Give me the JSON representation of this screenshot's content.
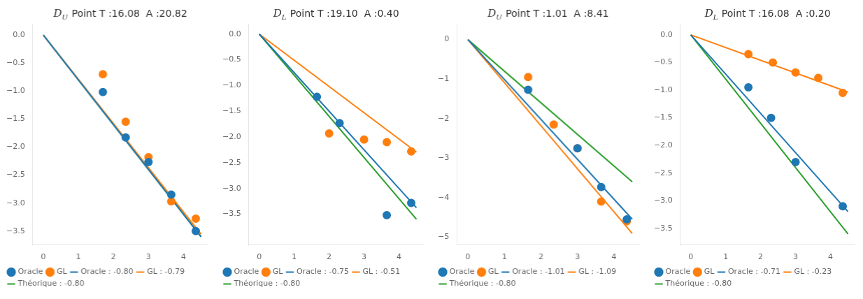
{
  "chart_data": [
    {
      "type": "scatter",
      "title": "DU Point T :16.08  A :20.82",
      "series": [
        {
          "name": "Oracle : -0.80",
          "type": "line",
          "color": "#1f77b4",
          "x": [
            0.0,
            4.5
          ],
          "values": [
            0.0,
            -3.6
          ]
        },
        {
          "name": "GL : -0.79",
          "type": "line",
          "color": "#ff7f0e",
          "x": [
            0.0,
            4.5
          ],
          "values": [
            0.0,
            -3.555
          ]
        },
        {
          "name": "Théorique : -0.80",
          "type": "line",
          "color": "#2ca02c",
          "x": [
            0.0,
            4.5
          ],
          "values": [
            0.0,
            -3.6
          ]
        },
        {
          "name": "Oracle",
          "type": "scatter",
          "color": "#1f77b4",
          "x": [
            1.7,
            2.35,
            3.0,
            3.65,
            4.35
          ],
          "values": [
            -1.02,
            -1.83,
            -2.27,
            -2.85,
            -3.5
          ]
        },
        {
          "name": "GL",
          "type": "scatter",
          "color": "#ff7f0e",
          "x": [
            1.7,
            2.35,
            3.0,
            3.65,
            4.35
          ],
          "values": [
            -0.7,
            -1.55,
            -2.18,
            -2.97,
            -3.28
          ]
        }
      ],
      "xlim": [
        -0.3,
        4.7
      ],
      "xticks": [
        0,
        1,
        2,
        3,
        4
      ],
      "ylim": [
        -3.75,
        0.2
      ],
      "yticks": [
        {
          "value": 0.0,
          "label": "0.0"
        },
        {
          "value": -0.5,
          "label": "−0.5"
        },
        {
          "value": -1.0,
          "label": "−1.0"
        },
        {
          "value": -1.5,
          "label": "−1.5"
        },
        {
          "value": -2.0,
          "label": "−2.0"
        },
        {
          "value": -2.5,
          "label": "−2.5"
        },
        {
          "value": -3.0,
          "label": "−3.0"
        },
        {
          "value": -3.5,
          "label": "−3.5"
        }
      ],
      "grid": false,
      "legend": "lower left"
    },
    {
      "type": "scatter",
      "title": "DL Point T :19.10  A :0.40",
      "series": [
        {
          "name": "Oracle : -0.75",
          "type": "line",
          "color": "#1f77b4",
          "x": [
            0.0,
            4.5
          ],
          "values": [
            0.0,
            -3.375
          ]
        },
        {
          "name": "GL : -0.51",
          "type": "line",
          "color": "#ff7f0e",
          "x": [
            0.0,
            4.5
          ],
          "values": [
            0.0,
            -2.295
          ]
        },
        {
          "name": "Théorique : -0.80",
          "type": "line",
          "color": "#2ca02c",
          "x": [
            0.0,
            4.5
          ],
          "values": [
            0.0,
            -3.6
          ]
        },
        {
          "name": "Oracle",
          "type": "scatter",
          "color": "#1f77b4",
          "x": [
            1.65,
            2.3,
            3.65,
            4.35
          ],
          "values": [
            -1.22,
            -1.73,
            -3.52,
            -3.28
          ]
        },
        {
          "name": "GL",
          "type": "scatter",
          "color": "#ff7f0e",
          "x": [
            2.0,
            3.0,
            3.65,
            4.35
          ],
          "values": [
            -1.93,
            -2.05,
            -2.1,
            -2.28
          ]
        }
      ],
      "xlim": [
        -0.3,
        4.7
      ],
      "xticks": [
        0,
        1,
        2,
        3,
        4
      ],
      "ylim": [
        -4.1,
        0.2
      ],
      "yticks": [
        {
          "value": 0.0,
          "label": "0.0"
        },
        {
          "value": -0.5,
          "label": "−0.5"
        },
        {
          "value": -1.0,
          "label": "−1.0"
        },
        {
          "value": -1.5,
          "label": "−1.5"
        },
        {
          "value": -2.0,
          "label": "−2.0"
        },
        {
          "value": -2.5,
          "label": "−2.5"
        },
        {
          "value": -3.0,
          "label": "−3.0"
        },
        {
          "value": -3.5,
          "label": "−3.5"
        }
      ],
      "grid": false,
      "legend": "lower left"
    },
    {
      "type": "scatter",
      "title": "DU Point T :1.01  A :8.41",
      "series": [
        {
          "name": "Oracle : -1.01",
          "type": "line",
          "color": "#1f77b4",
          "x": [
            0.0,
            4.5
          ],
          "values": [
            0.0,
            -4.545
          ]
        },
        {
          "name": "GL : -1.09",
          "type": "line",
          "color": "#ff7f0e",
          "x": [
            0.0,
            4.5
          ],
          "values": [
            0.0,
            -4.905
          ]
        },
        {
          "name": "Théorique : -0.80",
          "type": "line",
          "color": "#2ca02c",
          "x": [
            0.0,
            4.5
          ],
          "values": [
            0.0,
            -3.6
          ]
        },
        {
          "name": "Oracle",
          "type": "scatter",
          "color": "#1f77b4",
          "x": [
            1.65,
            3.0,
            3.65,
            4.35
          ],
          "values": [
            -1.27,
            -2.75,
            -3.73,
            -4.55
          ]
        },
        {
          "name": "GL",
          "type": "scatter",
          "color": "#ff7f0e",
          "x": [
            1.65,
            2.35,
            3.0,
            3.65,
            4.35
          ],
          "values": [
            -0.95,
            -2.15,
            -2.75,
            -4.1,
            -4.6
          ]
        }
      ],
      "xlim": [
        -0.3,
        4.7
      ],
      "xticks": [
        0,
        1,
        2,
        3,
        4
      ],
      "ylim": [
        -5.2,
        0.4
      ],
      "yticks": [
        0,
        {
          "value": -1,
          "label": "−1"
        },
        {
          "value": -2,
          "label": "−2"
        },
        {
          "value": -3,
          "label": "−3"
        },
        {
          "value": -4,
          "label": "−4"
        },
        {
          "value": -5,
          "label": "−5"
        }
      ],
      "grid": false,
      "legend": "lower left"
    },
    {
      "type": "scatter",
      "title": "DL Point T :16.08  A :0.20",
      "series": [
        {
          "name": "Oracle : -0.71",
          "type": "line",
          "color": "#1f77b4",
          "x": [
            0.0,
            4.5
          ],
          "values": [
            0.0,
            -3.195
          ]
        },
        {
          "name": "GL : -0.23",
          "type": "line",
          "color": "#ff7f0e",
          "x": [
            0.0,
            4.5
          ],
          "values": [
            0.0,
            -1.035
          ]
        },
        {
          "name": "Théorique : -0.80",
          "type": "line",
          "color": "#2ca02c",
          "x": [
            0.0,
            4.5
          ],
          "values": [
            0.0,
            -3.6
          ]
        },
        {
          "name": "Oracle",
          "type": "scatter",
          "color": "#1f77b4",
          "x": [
            1.65,
            2.3,
            3.0,
            4.35
          ],
          "values": [
            -0.95,
            -1.5,
            -2.3,
            -3.1
          ]
        },
        {
          "name": "GL",
          "type": "scatter",
          "color": "#ff7f0e",
          "x": [
            1.65,
            2.35,
            3.0,
            3.65,
            4.35
          ],
          "values": [
            -0.35,
            -0.5,
            -0.68,
            -0.78,
            -1.05
          ]
        }
      ],
      "xlim": [
        -0.3,
        4.7
      ],
      "xticks": [
        0,
        1,
        2,
        3,
        4
      ],
      "ylim": [
        -3.8,
        0.2
      ],
      "yticks": [
        {
          "value": 0.0,
          "label": "0.0"
        },
        {
          "value": -0.5,
          "label": "−0.5"
        },
        {
          "value": -1.0,
          "label": "−1.0"
        },
        {
          "value": -1.5,
          "label": "−1.5"
        },
        {
          "value": -2.0,
          "label": "−2.0"
        },
        {
          "value": -2.5,
          "label": "−2.5"
        },
        {
          "value": -3.0,
          "label": "−3.0"
        },
        {
          "value": -3.5,
          "label": "−3.5"
        }
      ],
      "grid": false,
      "legend": "lower left"
    }
  ]
}
